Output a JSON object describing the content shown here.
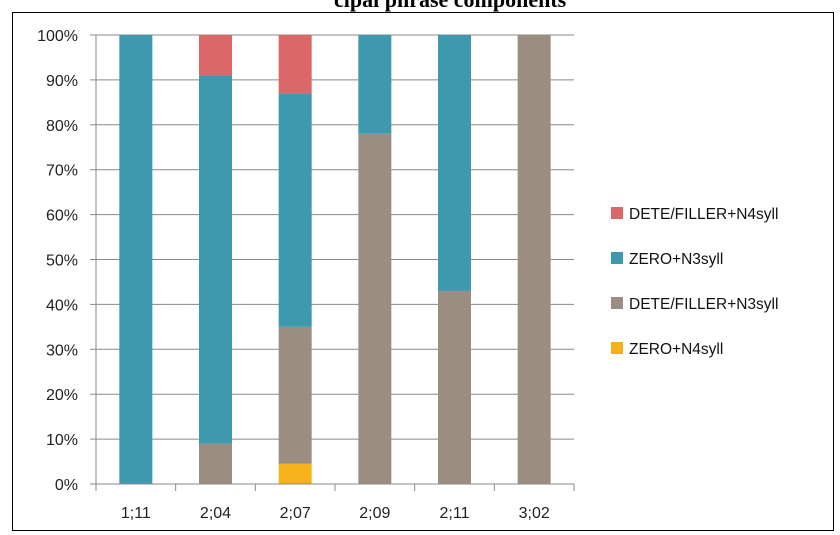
{
  "top_caption": "cipal phrase components",
  "chart_data": {
    "type": "bar",
    "stacked": true,
    "percent": true,
    "categories": [
      "1;11",
      "2;04",
      "2;07",
      "2;09",
      "2;11",
      "3;02"
    ],
    "y_ticks": [
      "0%",
      "10%",
      "20%",
      "30%",
      "40%",
      "50%",
      "60%",
      "70%",
      "80%",
      "90%",
      "100%"
    ],
    "ylim": [
      0,
      100
    ],
    "grid": true,
    "legend_position": "right",
    "series": [
      {
        "name": "ZERO+N4syll",
        "color": "#F5B21B",
        "values": [
          0,
          0,
          4.5,
          0,
          0,
          0
        ]
      },
      {
        "name": "DETE/FILLER+N3syll",
        "color": "#9A8D82",
        "values": [
          0,
          9,
          30.5,
          78,
          43,
          100
        ]
      },
      {
        "name": "ZERO+N3syll",
        "color": "#3E99AF",
        "values": [
          100,
          82,
          52,
          22,
          57,
          0
        ]
      },
      {
        "name": "DETE/FILLER+N4syll",
        "color": "#DB6769",
        "values": [
          0,
          9,
          13,
          0,
          0,
          0
        ]
      }
    ],
    "legend_order": [
      "DETE/FILLER+N4syll",
      "ZERO+N3syll",
      "DETE/FILLER+N3syll",
      "ZERO+N4syll"
    ]
  }
}
